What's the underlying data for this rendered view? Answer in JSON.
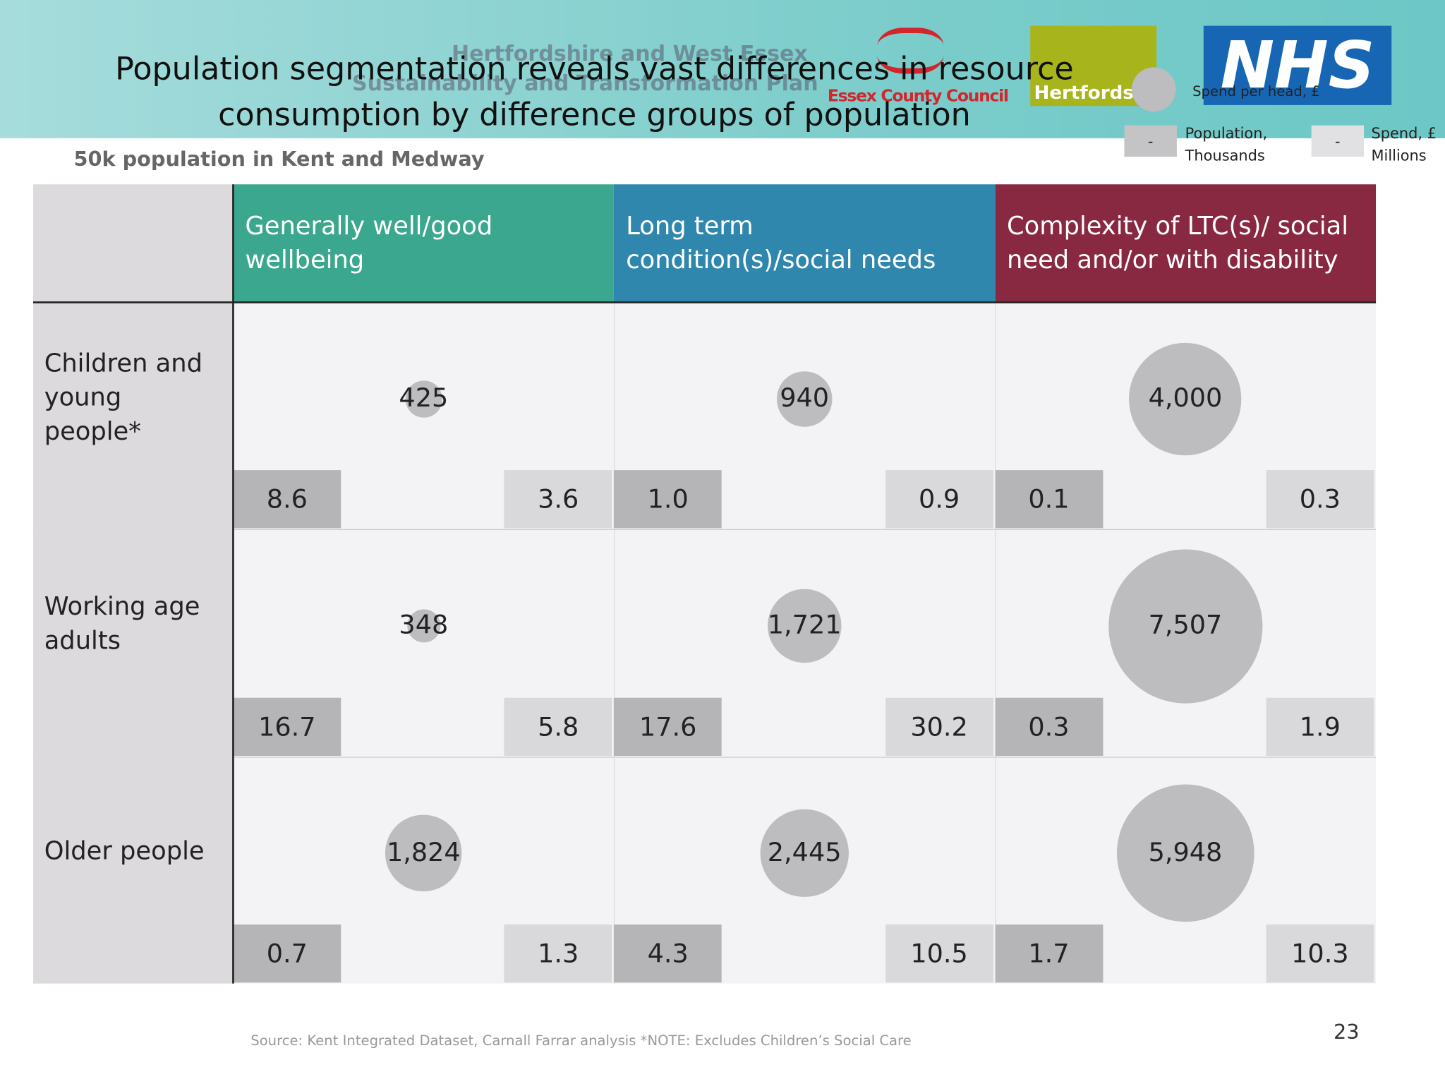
{
  "header": {
    "title": "Population segmentation reveals vast differences in resource consumption by difference groups of population",
    "watermark": [
      "Hertfordshire and West Essex",
      "Sustainability and Transformation Plan"
    ],
    "logos": {
      "essex": "Essex County Council",
      "herts": "Hertfordshire",
      "nhs": "NHS"
    }
  },
  "subtitle": "50k population in Kent and Medway",
  "legend": {
    "bubble": "Spend per head, £",
    "dash": "-",
    "population": "Population, Thousands",
    "spend": "Spend, £ Millions"
  },
  "table": {
    "columns": [
      {
        "label": "Generally well/good wellbeing",
        "color": "#3aa78e"
      },
      {
        "label": "Long term condition(s)/social needs",
        "color": "#2f87ad"
      },
      {
        "label": "Complexity of LTC(s)/ social need and/or with disability",
        "color": "#882841"
      }
    ],
    "rows": [
      {
        "label": "Children and young people*",
        "cells": [
          {
            "spend": {
              "value": 425,
              "label": "425"
            },
            "population": "8.6",
            "spend_total": "3.6"
          },
          {
            "spend": {
              "value": 940,
              "label": "940"
            },
            "population": "1.0",
            "spend_total": "0.9"
          },
          {
            "spend": {
              "value": 4000,
              "label": "4,000"
            },
            "population": "0.1",
            "spend_total": "0.3"
          }
        ]
      },
      {
        "label": "Working age adults",
        "cells": [
          {
            "spend": {
              "value": 348,
              "label": "348"
            },
            "population": "16.7",
            "spend_total": "5.8"
          },
          {
            "spend": {
              "value": 1721,
              "label": "1,721"
            },
            "population": "17.6",
            "spend_total": "30.2"
          },
          {
            "spend": {
              "value": 7507,
              "label": "7,507"
            },
            "population": "0.3",
            "spend_total": "1.9"
          }
        ]
      },
      {
        "label": "Older people",
        "cells": [
          {
            "spend": {
              "value": 1824,
              "label": "1,824"
            },
            "population": "0.7",
            "spend_total": "1.3"
          },
          {
            "spend": {
              "value": 2445,
              "label": "2,445"
            },
            "population": "4.3",
            "spend_total": "10.5"
          },
          {
            "spend": {
              "value": 5948,
              "label": "5,948"
            },
            "population": "1.7",
            "spend_total": "10.3"
          }
        ]
      }
    ]
  },
  "footer": {
    "source": "Source: Kent Integrated Dataset, Carnall Farrar analysis *NOTE: Excludes Children’s Social Care",
    "page": "23"
  }
}
